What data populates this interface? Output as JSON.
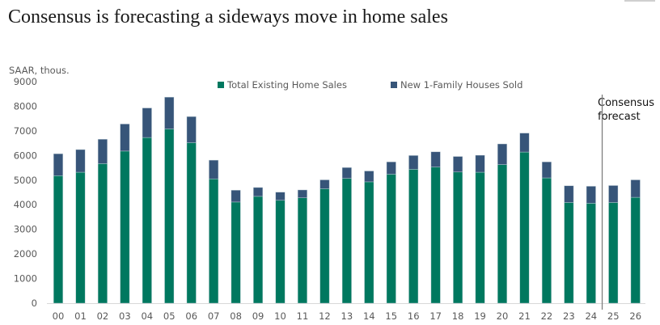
{
  "chart_data": {
    "type": "bar",
    "stacked": true,
    "title": "Consensus is forecasting a sideways move in home sales",
    "ylabel": "SAAR, thous.",
    "xlabel": "",
    "ylim": [
      0,
      9000
    ],
    "yticks": [
      0,
      1000,
      2000,
      3000,
      4000,
      5000,
      6000,
      7000,
      8000,
      9000
    ],
    "categories": [
      "00",
      "01",
      "02",
      "03",
      "04",
      "05",
      "06",
      "07",
      "08",
      "09",
      "10",
      "11",
      "12",
      "13",
      "14",
      "15",
      "16",
      "17",
      "18",
      "19",
      "20",
      "21",
      "22",
      "23",
      "24",
      "25",
      "26"
    ],
    "series": [
      {
        "name": "Total Existing Home Sales",
        "color": "#00785F",
        "values": [
          5180,
          5320,
          5670,
          6180,
          6730,
          7080,
          6520,
          5050,
          4110,
          4340,
          4180,
          4280,
          4650,
          5070,
          4930,
          5240,
          5440,
          5530,
          5330,
          5320,
          5630,
          6140,
          5090,
          4090,
          4060,
          4090,
          4300
        ]
      },
      {
        "name": "New 1-Family Houses Sold",
        "color": "#375579",
        "values": [
          890,
          920,
          990,
          1100,
          1200,
          1290,
          1060,
          760,
          480,
          360,
          330,
          320,
          360,
          440,
          440,
          500,
          560,
          620,
          630,
          690,
          840,
          770,
          650,
          680,
          690,
          690,
          710
        ]
      }
    ],
    "legend_position": "top-center",
    "grid": false,
    "annotation": {
      "text_line1": "Consensus",
      "text_line2": "forecast",
      "after_category": "24"
    }
  }
}
